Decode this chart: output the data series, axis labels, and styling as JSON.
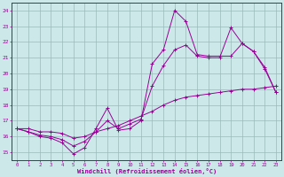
{
  "bg_color": "#cce8e8",
  "line_color": "#990099",
  "grid_color": "#99bbbb",
  "xlabel": "Windchill (Refroidissement éolien,°C)",
  "xlim_min": -0.5,
  "xlim_max": 23.5,
  "ylim_min": 14.5,
  "ylim_max": 24.5,
  "xticks": [
    0,
    1,
    2,
    3,
    4,
    5,
    6,
    7,
    8,
    9,
    10,
    11,
    12,
    13,
    14,
    15,
    16,
    17,
    18,
    19,
    20,
    21,
    22,
    23
  ],
  "yticks": [
    15,
    16,
    17,
    18,
    19,
    20,
    21,
    22,
    23,
    24
  ],
  "line1": {
    "x": [
      0,
      1,
      2,
      3,
      4,
      5,
      6,
      7,
      8,
      9,
      10,
      11,
      12,
      13,
      14,
      15,
      16,
      17,
      18,
      19,
      20,
      21,
      22,
      23
    ],
    "y": [
      16.5,
      16.3,
      16.0,
      15.9,
      15.6,
      14.9,
      15.3,
      16.5,
      17.8,
      16.4,
      16.5,
      17.0,
      20.6,
      21.5,
      24.0,
      23.3,
      21.2,
      21.1,
      21.1,
      21.1,
      21.9,
      21.4,
      20.4,
      18.8
    ]
  },
  "line2": {
    "x": [
      0,
      1,
      2,
      3,
      4,
      5,
      6,
      7,
      8,
      9,
      10,
      11,
      12,
      13,
      14,
      15,
      16,
      17,
      18,
      19,
      20,
      21,
      22,
      23
    ],
    "y": [
      16.5,
      16.3,
      16.1,
      16.0,
      15.8,
      15.4,
      15.7,
      16.3,
      17.0,
      16.5,
      16.8,
      17.1,
      19.2,
      20.5,
      21.5,
      21.8,
      21.1,
      21.0,
      21.0,
      22.9,
      21.9,
      21.4,
      20.3,
      18.8
    ]
  },
  "line3": {
    "x": [
      0,
      1,
      2,
      3,
      4,
      5,
      6,
      7,
      8,
      9,
      10,
      11,
      12,
      13,
      14,
      15,
      16,
      17,
      18,
      19,
      20,
      21,
      22,
      23
    ],
    "y": [
      16.5,
      16.5,
      16.3,
      16.3,
      16.2,
      15.9,
      16.0,
      16.3,
      16.5,
      16.7,
      17.0,
      17.3,
      17.6,
      18.0,
      18.3,
      18.5,
      18.6,
      18.7,
      18.8,
      18.9,
      19.0,
      19.0,
      19.1,
      19.2
    ]
  }
}
